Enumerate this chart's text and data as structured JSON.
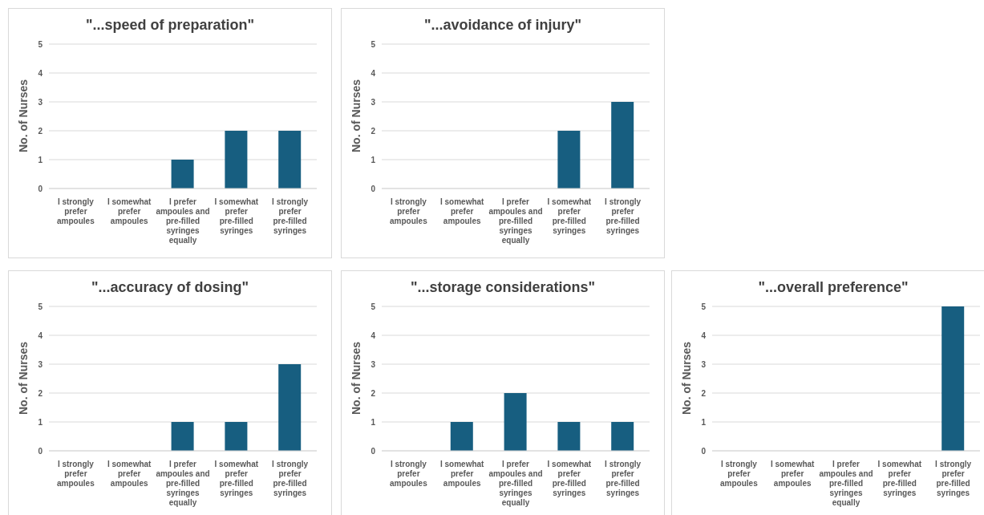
{
  "chart_data": [
    {
      "type": "bar",
      "title": "\"...speed of preparation\"",
      "ylabel": "No. of Nurses",
      "categories": [
        "I strongly prefer ampoules",
        "I somewhat prefer ampoules",
        "I prefer ampoules and pre-filled syringes equally",
        "I somewhat prefer pre-filled syringes",
        "I strongly prefer pre-filled syringes"
      ],
      "values": [
        0,
        0,
        1,
        2,
        2
      ],
      "color": "#175e80",
      "ylim": [
        0,
        5
      ],
      "yticks": [
        0,
        1,
        2,
        3,
        4,
        5
      ],
      "grid": "y"
    },
    {
      "type": "bar",
      "title": "\"...avoidance of injury\"",
      "ylabel": "No. of Nurses",
      "categories": [
        "I strongly prefer ampoules",
        "I somewhat prefer ampoules",
        "I prefer ampoules and pre-filled syringes equally",
        "I somewhat prefer pre-filled syringes",
        "I strongly prefer pre-filled syringes"
      ],
      "values": [
        0,
        0,
        0,
        2,
        3
      ],
      "color": "#175e80",
      "ylim": [
        0,
        5
      ],
      "yticks": [
        0,
        1,
        2,
        3,
        4,
        5
      ],
      "grid": "y"
    },
    {
      "type": "bar",
      "title": "\"...accuracy of dosing\"",
      "ylabel": "No. of Nurses",
      "categories": [
        "I strongly prefer ampoules",
        "I somewhat prefer ampoules",
        "I prefer ampoules and pre-filled syringes equally",
        "I somewhat prefer pre-filled syringes",
        "I strongly prefer pre-filled syringes"
      ],
      "values": [
        0,
        0,
        1,
        1,
        3
      ],
      "color": "#175e80",
      "ylim": [
        0,
        5
      ],
      "yticks": [
        0,
        1,
        2,
        3,
        4,
        5
      ],
      "grid": "y"
    },
    {
      "type": "bar",
      "title": "\"...storage considerations\"",
      "ylabel": "No. of Nurses",
      "categories": [
        "I strongly prefer ampoules",
        "I somewhat prefer ampoules",
        "I prefer ampoules and pre-filled syringes equally",
        "I somewhat prefer pre-filled syringes",
        "I strongly prefer pre-filled syringes"
      ],
      "values": [
        0,
        1,
        2,
        1,
        1
      ],
      "color": "#175e80",
      "ylim": [
        0,
        5
      ],
      "yticks": [
        0,
        1,
        2,
        3,
        4,
        5
      ],
      "grid": "y"
    },
    {
      "type": "bar",
      "title": "\"...overall preference\"",
      "ylabel": "No. of Nurses",
      "categories": [
        "I strongly prefer ampoules",
        "I somewhat prefer ampoules",
        "I prefer ampoules and pre-filled syringes equally",
        "I somewhat prefer pre-filled syringes",
        "I strongly prefer pre-filled syringes"
      ],
      "values": [
        0,
        0,
        0,
        0,
        5
      ],
      "color": "#175e80",
      "ylim": [
        0,
        5
      ],
      "yticks": [
        0,
        1,
        2,
        3,
        4,
        5
      ],
      "grid": "y"
    }
  ]
}
